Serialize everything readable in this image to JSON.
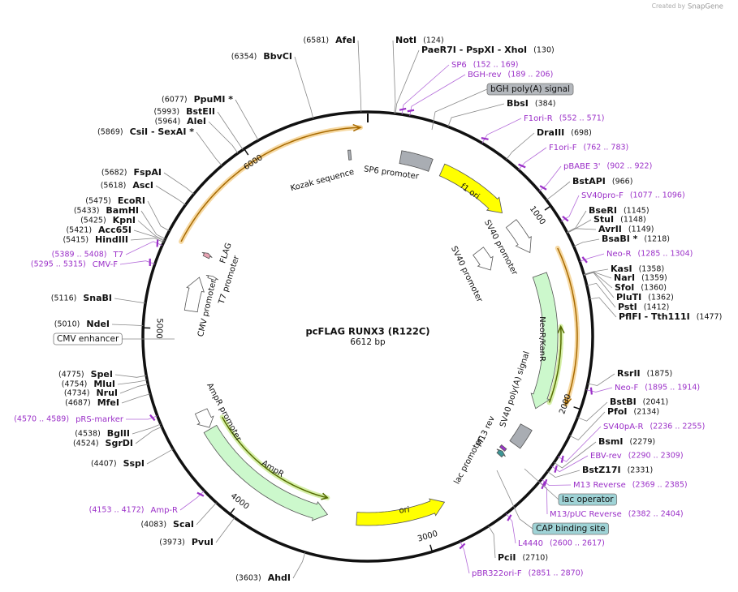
{
  "watermark": {
    "created": "Created by",
    "brand": "SnapGene"
  },
  "map": {
    "title": "pcFLAG RUNX3 (R122C)",
    "length": {
      "value": 6612,
      "label": "6612 bp"
    },
    "ticks": [
      1000,
      2000,
      3000,
      4000,
      5000,
      6000
    ]
  },
  "sites": [
    {
      "name": "AfeI",
      "pos": {
        "value": 6581,
        "label": "(6581)"
      }
    },
    {
      "name": "NotI",
      "pos": {
        "value": 124,
        "label": "(124)"
      }
    },
    {
      "name": "PaeR7I - PspXI - XhoI",
      "pos": {
        "value": 130,
        "label": "(130)"
      }
    },
    {
      "name": "BbvCI",
      "pos": {
        "value": 6354,
        "label": "(6354)"
      }
    },
    {
      "name": "BbsI",
      "pos": {
        "value": 384,
        "label": "(384)"
      }
    },
    {
      "name": "PpuMI *",
      "pos": {
        "value": 6077,
        "label": "(6077)"
      }
    },
    {
      "name": "BstEII",
      "pos": {
        "value": 5993,
        "label": "(5993)"
      }
    },
    {
      "name": "AleI",
      "pos": {
        "value": 5964,
        "label": "(5964)"
      }
    },
    {
      "name": "CsiI - SexAI *",
      "pos": {
        "value": 5869,
        "label": "(5869)"
      }
    },
    {
      "name": "DraIII",
      "pos": {
        "value": 698,
        "label": "(698)"
      }
    },
    {
      "name": "FspAI",
      "pos": {
        "value": 5682,
        "label": "(5682)"
      }
    },
    {
      "name": "BstAPI",
      "pos": {
        "value": 966,
        "label": "(966)"
      }
    },
    {
      "name": "AscI",
      "pos": {
        "value": 5618,
        "label": "(5618)"
      }
    },
    {
      "name": "EcoRI",
      "pos": {
        "value": 5475,
        "label": "(5475)"
      }
    },
    {
      "name": "BamHI",
      "pos": {
        "value": 5433,
        "label": "(5433)"
      }
    },
    {
      "name": "BseRI",
      "pos": {
        "value": 1145,
        "label": "(1145)"
      }
    },
    {
      "name": "KpnI",
      "pos": {
        "value": 5425,
        "label": "(5425)"
      }
    },
    {
      "name": "StuI",
      "pos": {
        "value": 1148,
        "label": "(1148)"
      }
    },
    {
      "name": "Acc65I",
      "pos": {
        "value": 5421,
        "label": "(5421)"
      }
    },
    {
      "name": "AvrII",
      "pos": {
        "value": 1149,
        "label": "(1149)"
      }
    },
    {
      "name": "HindIII",
      "pos": {
        "value": 5415,
        "label": "(5415)"
      }
    },
    {
      "name": "BsaBI *",
      "pos": {
        "value": 1218,
        "label": "(1218)"
      }
    },
    {
      "name": "KasI",
      "pos": {
        "value": 1358,
        "label": "(1358)"
      }
    },
    {
      "name": "NarI",
      "pos": {
        "value": 1359,
        "label": "(1359)"
      }
    },
    {
      "name": "SfoI",
      "pos": {
        "value": 1360,
        "label": "(1360)"
      }
    },
    {
      "name": "PluTI",
      "pos": {
        "value": 1362,
        "label": "(1362)"
      }
    },
    {
      "name": "SnaBI",
      "pos": {
        "value": 5116,
        "label": "(5116)"
      }
    },
    {
      "name": "PstI",
      "pos": {
        "value": 1412,
        "label": "(1412)"
      }
    },
    {
      "name": "PflFI - Tth111I",
      "pos": {
        "value": 1477,
        "label": "(1477)"
      }
    },
    {
      "name": "NdeI",
      "pos": {
        "value": 5010,
        "label": "(5010)"
      }
    },
    {
      "name": "RsrII",
      "pos": {
        "value": 1875,
        "label": "(1875)"
      }
    },
    {
      "name": "SpeI",
      "pos": {
        "value": 4775,
        "label": "(4775)"
      }
    },
    {
      "name": "MluI",
      "pos": {
        "value": 4754,
        "label": "(4754)"
      }
    },
    {
      "name": "NruI",
      "pos": {
        "value": 4734,
        "label": "(4734)"
      }
    },
    {
      "name": "BstBI",
      "pos": {
        "value": 2041,
        "label": "(2041)"
      }
    },
    {
      "name": "MfeI",
      "pos": {
        "value": 4687,
        "label": "(4687)"
      }
    },
    {
      "name": "PfoI",
      "pos": {
        "value": 2134,
        "label": "(2134)"
      }
    },
    {
      "name": "BglII",
      "pos": {
        "value": 4538,
        "label": "(4538)"
      }
    },
    {
      "name": "BsmI",
      "pos": {
        "value": 2279,
        "label": "(2279)"
      }
    },
    {
      "name": "SgrDI",
      "pos": {
        "value": 4524,
        "label": "(4524)"
      }
    },
    {
      "name": "SspI",
      "pos": {
        "value": 4407,
        "label": "(4407)"
      }
    },
    {
      "name": "BstZ17I",
      "pos": {
        "value": 2331,
        "label": "(2331)"
      }
    },
    {
      "name": "ScaI",
      "pos": {
        "value": 4083,
        "label": "(4083)"
      }
    },
    {
      "name": "PvuI",
      "pos": {
        "value": 3973,
        "label": "(3973)"
      }
    },
    {
      "name": "PciI",
      "pos": {
        "value": 2710,
        "label": "(2710)"
      }
    },
    {
      "name": "AhdI",
      "pos": {
        "value": 3603,
        "label": "(3603)"
      }
    }
  ],
  "primers": [
    {
      "name": "SP6",
      "range": {
        "start": 152,
        "end": 169,
        "label": "(152 .. 169)"
      }
    },
    {
      "name": "BGH-rev",
      "range": {
        "start": 189,
        "end": 206,
        "label": "(189 .. 206)"
      }
    },
    {
      "name": "F1ori-R",
      "range": {
        "start": 552,
        "end": 571,
        "label": "(552 .. 571)"
      }
    },
    {
      "name": "F1ori-F",
      "range": {
        "start": 762,
        "end": 783,
        "label": "(762 .. 783)"
      }
    },
    {
      "name": "pBABE 3'",
      "range": {
        "start": 902,
        "end": 922,
        "label": "(902 .. 922)"
      }
    },
    {
      "name": "SV40pro-F",
      "range": {
        "start": 1077,
        "end": 1096,
        "label": "(1077 .. 1096)"
      }
    },
    {
      "name": "Neo-R",
      "range": {
        "start": 1285,
        "end": 1304,
        "label": "(1285 .. 1304)"
      }
    },
    {
      "name": "Neo-F",
      "range": {
        "start": 1895,
        "end": 1914,
        "label": "(1895 .. 1914)"
      }
    },
    {
      "name": "SV40pA-R",
      "range": {
        "start": 2236,
        "end": 2255,
        "label": "(2236 .. 2255)"
      }
    },
    {
      "name": "EBV-rev",
      "range": {
        "start": 2290,
        "end": 2309,
        "label": "(2290 .. 2309)"
      }
    },
    {
      "name": "M13 Reverse",
      "range": {
        "start": 2369,
        "end": 2385,
        "label": "(2369 .. 2385)"
      }
    },
    {
      "name": "M13/pUC Reverse",
      "range": {
        "start": 2382,
        "end": 2404,
        "label": "(2382 .. 2404)"
      }
    },
    {
      "name": "L4440",
      "range": {
        "start": 2600,
        "end": 2617,
        "label": "(2600 .. 2617)"
      }
    },
    {
      "name": "pBR322ori-F",
      "range": {
        "start": 2851,
        "end": 2870,
        "label": "(2851 .. 2870)"
      }
    },
    {
      "name": "Amp-R",
      "range": {
        "start": 4153,
        "end": 4172,
        "label": "(4153 .. 4172)"
      }
    },
    {
      "name": "pRS-marker",
      "range": {
        "start": 4570,
        "end": 4589,
        "label": "(4570 .. 4589)"
      }
    },
    {
      "name": "CMV-F",
      "range": {
        "start": 5295,
        "end": 5315,
        "label": "(5295 .. 5315)"
      }
    },
    {
      "name": "T7",
      "range": {
        "start": 5389,
        "end": 5408,
        "label": "(5389 .. 5408)"
      }
    }
  ],
  "features": [
    {
      "name": "SP6 promoter",
      "start": 190,
      "end": 370,
      "direction": 0,
      "color": "#a9adb3"
    },
    {
      "name": "Kozak sequence",
      "start": 6500,
      "end": 6515,
      "direction": 0,
      "color": "#a9adb3"
    },
    {
      "name": "f1 ori",
      "start": 441,
      "end": 870,
      "direction": 1,
      "color": "#ffff00"
    },
    {
      "name": "SV40 promoter",
      "start": 950,
      "end": 1150,
      "direction": 1,
      "color": "#ffffff"
    },
    {
      "name": "SV40 promoter",
      "start": 960,
      "end": 1130,
      "direction": 1,
      "color": "#ffffff"
    },
    {
      "name": "NeoR/KanR",
      "start": 1290,
      "end": 2080,
      "direction": 1,
      "color": "#ccf8cc"
    },
    {
      "name": "SV40 poly(A) signal",
      "start": 2200,
      "end": 2320,
      "direction": 0,
      "color": "#a9adb3"
    },
    {
      "name": "M13 rev",
      "start": 2370,
      "end": 2387,
      "direction": 0,
      "color": "#9b34c9"
    },
    {
      "name": "lac promoter",
      "start": 2395,
      "end": 2425,
      "direction": -1,
      "color": "#3d9696"
    },
    {
      "name": "ori",
      "start": 2850,
      "end": 3370,
      "direction": -1,
      "color": "#ffff00"
    },
    {
      "name": "AmpR",
      "start": 3540,
      "end": 4400,
      "direction": -1,
      "color": "#ccf8cc"
    },
    {
      "name": "AmpR promoter",
      "start": 4410,
      "end": 4515,
      "direction": -1,
      "color": "#ffffff"
    },
    {
      "name": "CMV promoter",
      "start": 5110,
      "end": 5315,
      "direction": 1,
      "color": "#ffffff"
    },
    {
      "name": "T7 promoter",
      "start": 5330,
      "end": 5350,
      "direction": 1,
      "color": "#ffffff"
    },
    {
      "name": "FLAG",
      "start": 5440,
      "end": 5465,
      "direction": 1,
      "color": "#e8a3b3"
    }
  ],
  "boxed_features": [
    {
      "name": "bGH poly(A) signal",
      "color": "#b4b8bd"
    },
    {
      "name": "lac operator",
      "color": "#9fd3d6"
    },
    {
      "name": "CAP binding site",
      "color": "#9fd3d6"
    },
    {
      "name": "CMV enhancer",
      "color": "#ffffff"
    }
  ]
}
